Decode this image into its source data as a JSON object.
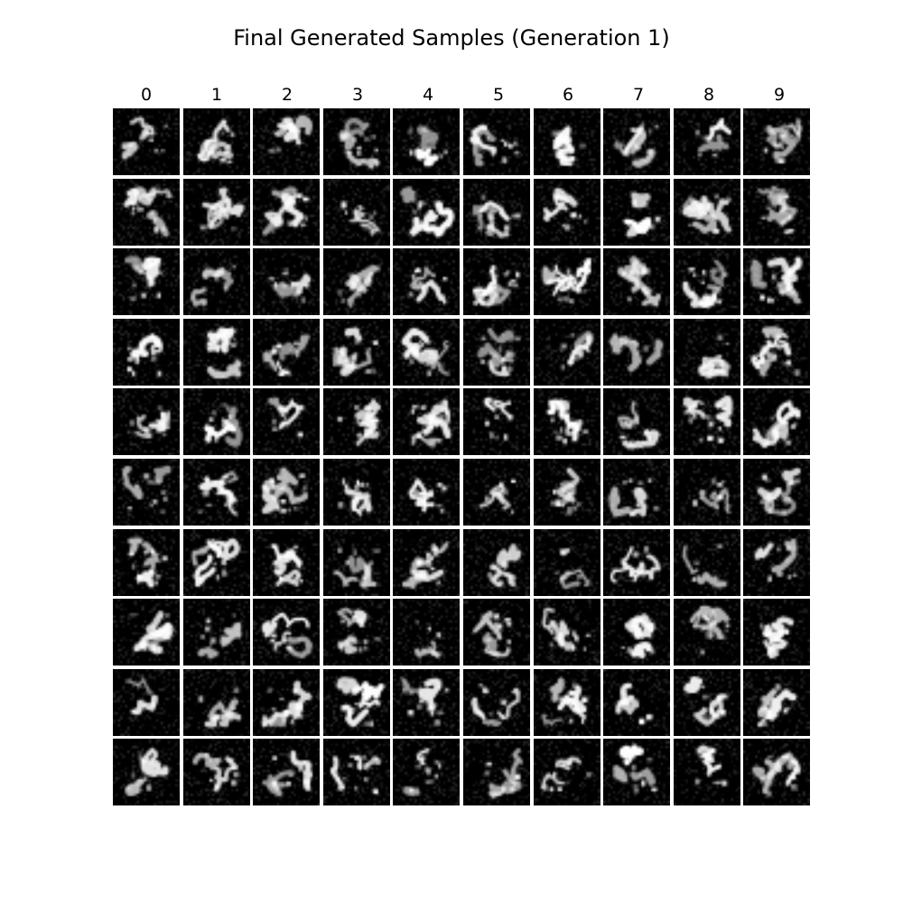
{
  "figure": {
    "title": "Final Generated Samples (Generation 1)",
    "columns": [
      "0",
      "1",
      "2",
      "3",
      "4",
      "5",
      "6",
      "7",
      "8",
      "9"
    ],
    "rows": 10,
    "background_color": "#ffffff",
    "cell_color": "#000000",
    "stroke_color": "#ffffff"
  }
}
